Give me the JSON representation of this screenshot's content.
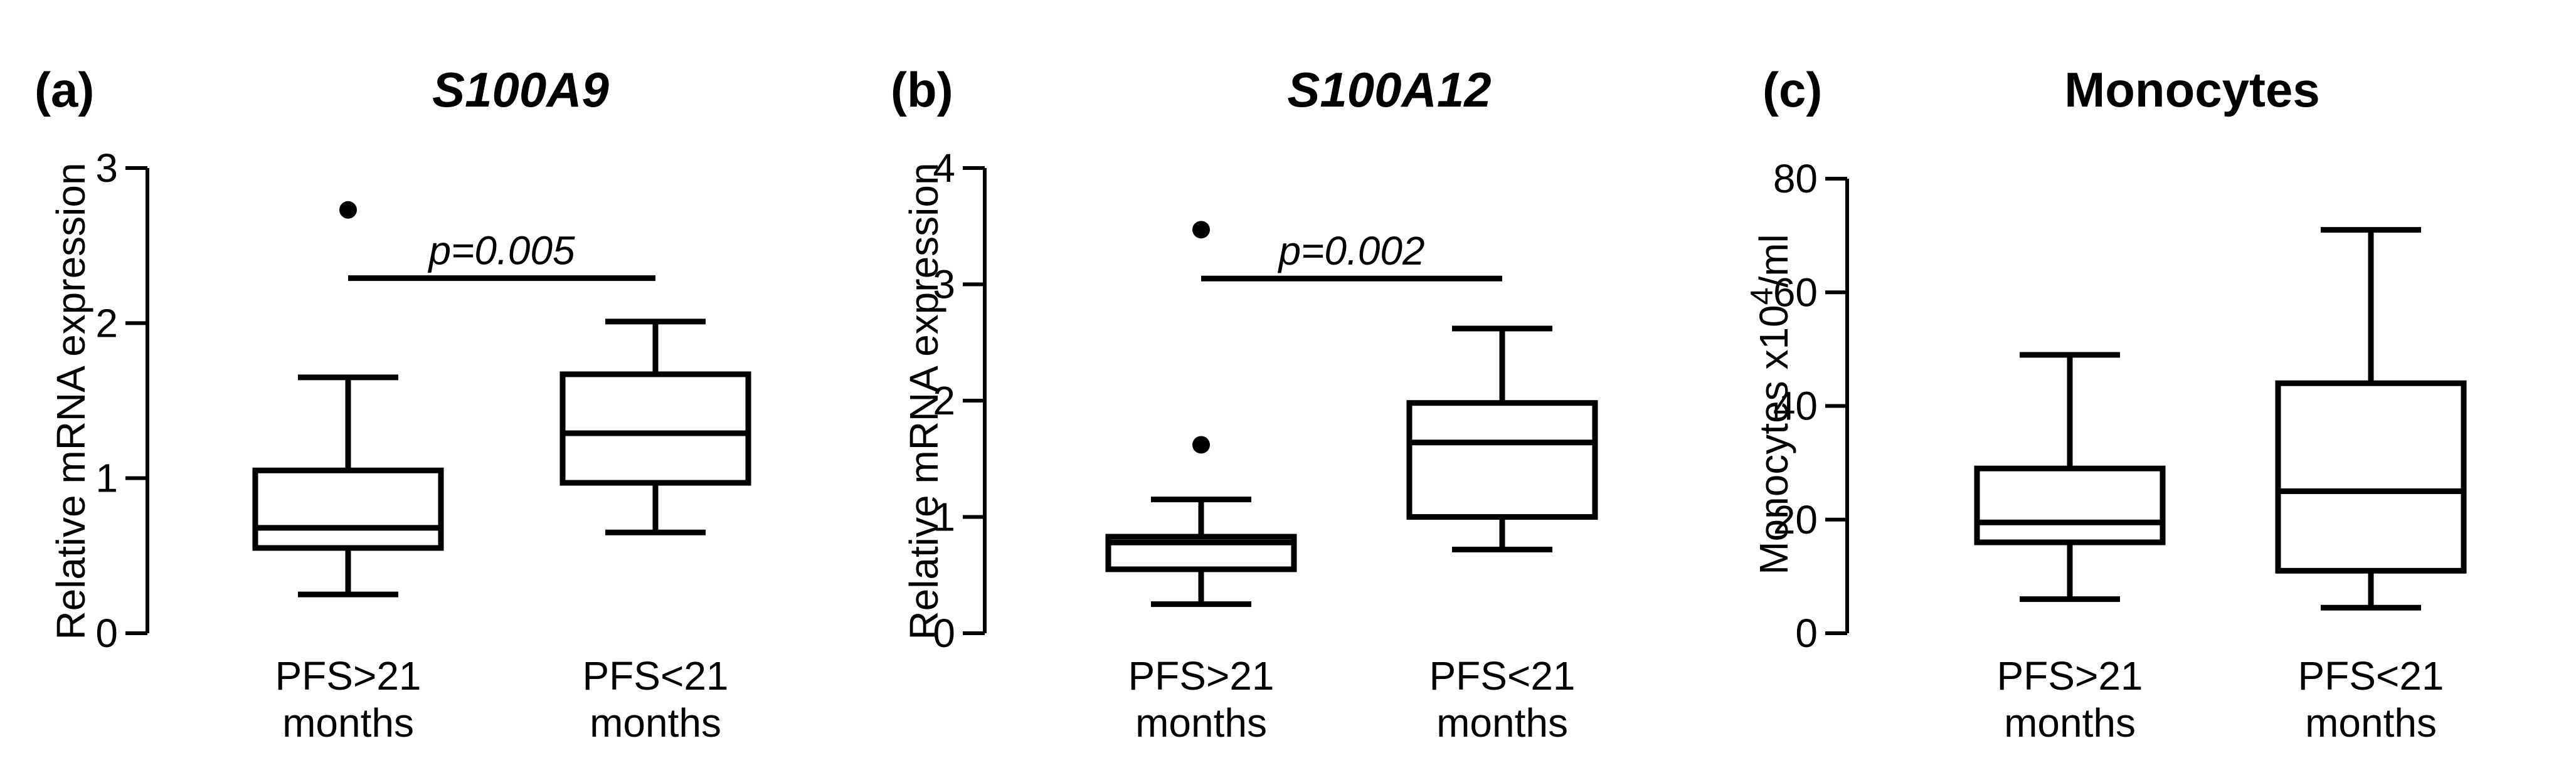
{
  "chart_data": [
    {
      "type": "boxplot",
      "panel_label": "(a)",
      "title": "S100A9",
      "title_italic": true,
      "ylabel": "Relative mRNA expression",
      "ylim": [
        0,
        3
      ],
      "yticks": [
        0,
        1,
        2,
        3
      ],
      "categories": [
        "PFS>21\nmonths",
        "PFS<21\nmonths"
      ],
      "boxes": [
        {
          "category": "PFS>21\nmonths",
          "whisker_low": 0.25,
          "q1": 0.55,
          "median": 0.68,
          "q3": 1.05,
          "whisker_high": 1.65,
          "outliers": [
            2.73
          ]
        },
        {
          "category": "PFS<21\nmonths",
          "whisker_low": 0.65,
          "q1": 0.97,
          "median": 1.29,
          "q3": 1.67,
          "whisker_high": 2.01,
          "outliers": []
        }
      ],
      "significance": {
        "text": "p=0.005",
        "y": 2.29
      }
    },
    {
      "type": "boxplot",
      "panel_label": "(b)",
      "title": "S100A12",
      "title_italic": true,
      "ylabel": "Relative mRNA expression",
      "ylim": [
        0,
        4
      ],
      "yticks": [
        0,
        1,
        2,
        3,
        4
      ],
      "categories": [
        "PFS>21\nmonths",
        "PFS<21\nmonths"
      ],
      "boxes": [
        {
          "category": "PFS>21\nmonths",
          "whisker_low": 0.25,
          "q1": 0.55,
          "median": 0.78,
          "q3": 0.83,
          "whisker_high": 1.15,
          "outliers": [
            1.62,
            3.47
          ]
        },
        {
          "category": "PFS<21\nmonths",
          "whisker_low": 0.72,
          "q1": 1.0,
          "median": 1.64,
          "q3": 1.98,
          "whisker_high": 2.62,
          "outliers": []
        }
      ],
      "significance": {
        "text": "p=0.002",
        "y": 3.05
      }
    },
    {
      "type": "boxplot",
      "panel_label": "(c)",
      "title": "Monocytes",
      "title_italic": false,
      "ylabel": "Monocytes x10",
      "ylabel_sup": "4",
      "ylabel_suffix": "/ml",
      "ylim": [
        0,
        80
      ],
      "yticks": [
        0,
        20,
        40,
        60,
        80
      ],
      "categories": [
        "PFS>21\nmonths",
        "PFS<21\nmonths"
      ],
      "boxes": [
        {
          "category": "PFS>21\nmonths",
          "whisker_low": 6,
          "q1": 16,
          "median": 19.5,
          "q3": 29,
          "whisker_high": 49,
          "outliers": []
        },
        {
          "category": "PFS<21\nmonths",
          "whisker_low": 4.5,
          "q1": 11,
          "median": 25,
          "q3": 44,
          "whisker_high": 71,
          "outliers": []
        }
      ],
      "significance": null
    }
  ]
}
